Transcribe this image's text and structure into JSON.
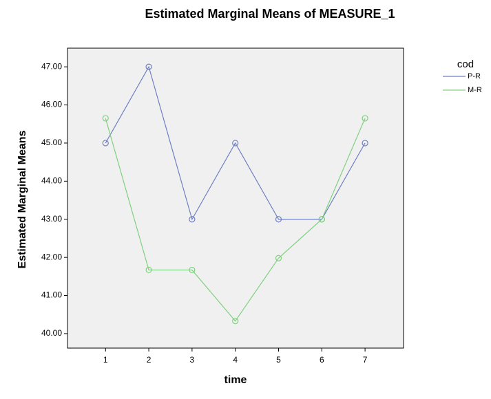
{
  "chart_data": {
    "type": "line",
    "title": "Estimated Marginal Means of MEASURE_1",
    "x_label": "time",
    "y_label": "Estimated Marginal Means",
    "legend_title": "cod",
    "x": [
      1,
      2,
      3,
      4,
      5,
      6,
      7
    ],
    "series": [
      {
        "name": "P-R",
        "color": "#6f7fc2",
        "values": [
          45,
          47,
          43,
          45,
          43,
          43,
          45
        ]
      },
      {
        "name": "M-R",
        "color": "#7fd07f",
        "values": [
          45.65,
          41.67,
          41.67,
          40.33,
          41.98,
          43,
          45.65
        ]
      }
    ],
    "xlim": [
      0.12,
      7.89
    ],
    "xticks": [
      1,
      2,
      3,
      4,
      5,
      6,
      7
    ],
    "ylim": [
      39.62,
      47.49
    ],
    "yticks": [
      {
        "value": 40,
        "label": "40.00"
      },
      {
        "value": 41,
        "label": "41.00"
      },
      {
        "value": 42,
        "label": "42.00"
      },
      {
        "value": 43,
        "label": "43.00"
      },
      {
        "value": 44,
        "label": "44.00"
      },
      {
        "value": 45,
        "label": "45.00"
      },
      {
        "value": 46,
        "label": "46.00"
      },
      {
        "value": 47,
        "label": "47.00"
      }
    ],
    "legend_position": "top-right",
    "plot_background": "#f0f0f0"
  }
}
